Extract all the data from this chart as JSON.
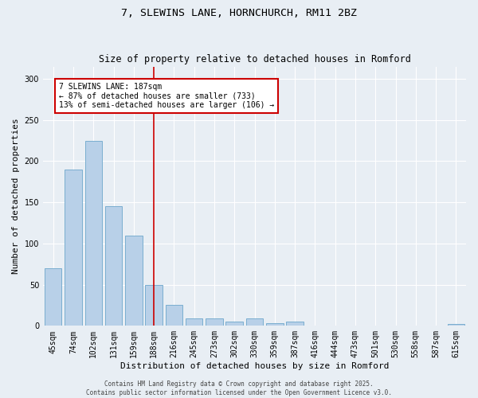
{
  "title": "7, SLEWINS LANE, HORNCHURCH, RM11 2BZ",
  "subtitle": "Size of property relative to detached houses in Romford",
  "xlabel": "Distribution of detached houses by size in Romford",
  "ylabel": "Number of detached properties",
  "categories": [
    "45sqm",
    "74sqm",
    "102sqm",
    "131sqm",
    "159sqm",
    "188sqm",
    "216sqm",
    "245sqm",
    "273sqm",
    "302sqm",
    "330sqm",
    "359sqm",
    "387sqm",
    "416sqm",
    "444sqm",
    "473sqm",
    "501sqm",
    "530sqm",
    "558sqm",
    "587sqm",
    "615sqm"
  ],
  "values": [
    70,
    190,
    225,
    145,
    110,
    50,
    25,
    9,
    9,
    5,
    9,
    3,
    5,
    0,
    0,
    0,
    0,
    0,
    0,
    0,
    2
  ],
  "bar_color": "#b8d0e8",
  "bar_edge_color": "#7aaed0",
  "vline_color": "#cc0000",
  "annotation_text": "7 SLEWINS LANE: 187sqm\n← 87% of detached houses are smaller (733)\n13% of semi-detached houses are larger (106) →",
  "annotation_box_color": "#cc0000",
  "ylim": [
    0,
    315
  ],
  "yticks": [
    0,
    50,
    100,
    150,
    200,
    250,
    300
  ],
  "background_color": "#e8eef4",
  "grid_color": "#ffffff",
  "footer": "Contains HM Land Registry data © Crown copyright and database right 2025.\nContains public sector information licensed under the Open Government Licence v3.0.",
  "title_fontsize": 9.5,
  "subtitle_fontsize": 8.5,
  "ylabel_fontsize": 8,
  "xlabel_fontsize": 8,
  "tick_fontsize": 7,
  "annot_fontsize": 7,
  "footer_fontsize": 5.5
}
